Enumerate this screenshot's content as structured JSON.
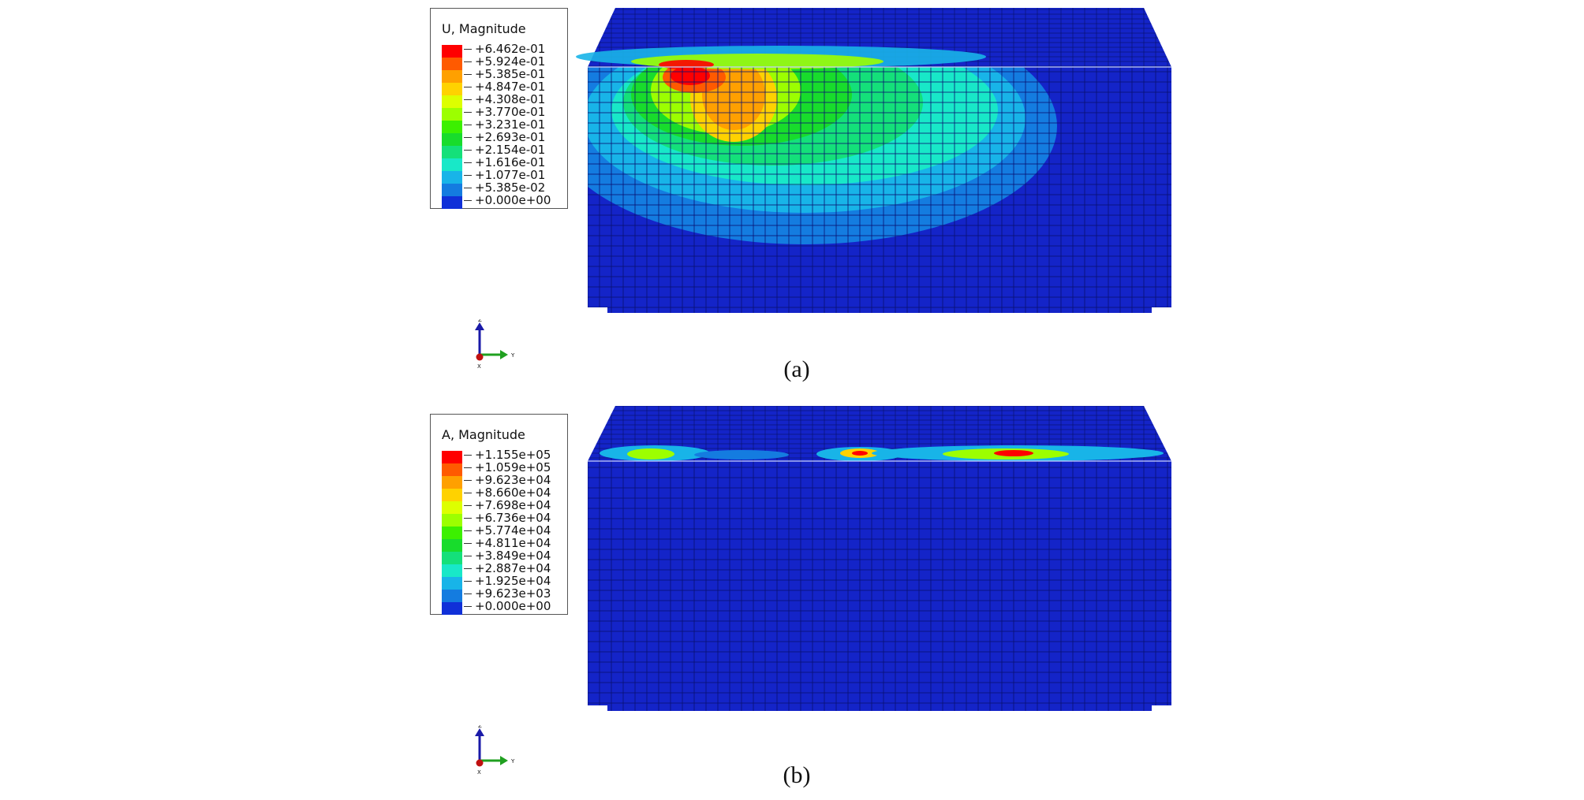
{
  "colors": {
    "mesh_base": "#1424c8",
    "mesh_line": "#071070",
    "contour_scale": [
      "#ff0000",
      "#ff5a00",
      "#ffa000",
      "#ffd200",
      "#ddff00",
      "#9cff00",
      "#3cf000",
      "#18dc2c",
      "#14e07a",
      "#18e8c8",
      "#18b4e8",
      "#147ce0",
      "#1030d8"
    ]
  },
  "panel_a": {
    "legend_title": "U, Magnitude",
    "legend_values": [
      "+6.462e-01",
      "+5.924e-01",
      "+5.385e-01",
      "+4.847e-01",
      "+4.308e-01",
      "+3.770e-01",
      "+3.231e-01",
      "+2.693e-01",
      "+2.154e-01",
      "+1.616e-01",
      "+1.077e-01",
      "+5.385e-02",
      "+0.000e+00"
    ],
    "caption": "(a)",
    "axis_labels": {
      "z": "Z",
      "y": "Y",
      "x": "X"
    }
  },
  "panel_b": {
    "legend_title": "A, Magnitude",
    "legend_values": [
      "+1.155e+05",
      "+1.059e+05",
      "+9.623e+04",
      "+8.660e+04",
      "+7.698e+04",
      "+6.736e+04",
      "+5.774e+04",
      "+4.811e+04",
      "+3.849e+04",
      "+2.887e+04",
      "+1.925e+04",
      "+9.623e+03",
      "+0.000e+00"
    ],
    "caption": "(b)",
    "axis_labels": {
      "z": "Z",
      "y": "Y",
      "x": "X"
    }
  }
}
